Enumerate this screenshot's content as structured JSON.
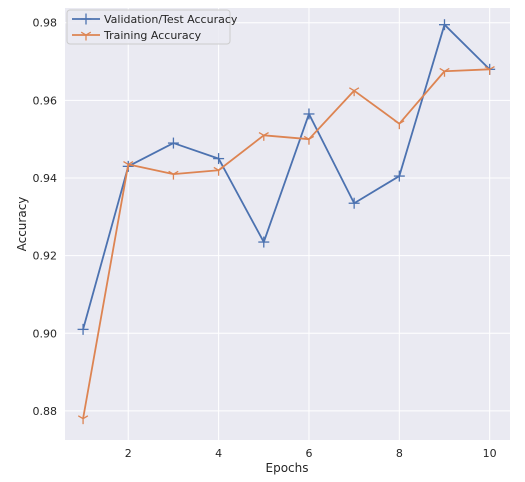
{
  "chart_data": {
    "type": "line",
    "title": "",
    "xlabel": "Epochs",
    "ylabel": "Accuracy",
    "x": [
      1,
      2,
      3,
      4,
      5,
      6,
      7,
      8,
      9,
      10
    ],
    "xticks": [
      "2",
      "4",
      "6",
      "8",
      "10"
    ],
    "xtick_values": [
      2,
      4,
      6,
      8,
      10
    ],
    "yticks": [
      "0.88",
      "0.90",
      "0.92",
      "0.94",
      "0.96",
      "0.98"
    ],
    "ytick_values": [
      0.88,
      0.9,
      0.92,
      0.94,
      0.96,
      0.98
    ],
    "xlim": [
      0.6,
      10.45
    ],
    "ylim": [
      0.8725,
      0.9838
    ],
    "grid": true,
    "legend_position": "upper-left",
    "series": [
      {
        "name": "Validation/Test Accuracy",
        "color": "#4c72b0",
        "marker": "plus",
        "values": [
          0.901,
          0.943,
          0.949,
          0.945,
          0.9235,
          0.9565,
          0.9335,
          0.9405,
          0.9795,
          0.968
        ]
      },
      {
        "name": "Training Accuracy",
        "color": "#dd8452",
        "marker": "tri-down",
        "values": [
          0.878,
          0.9435,
          0.941,
          0.942,
          0.951,
          0.95,
          0.9625,
          0.954,
          0.9675,
          0.968
        ]
      }
    ]
  }
}
